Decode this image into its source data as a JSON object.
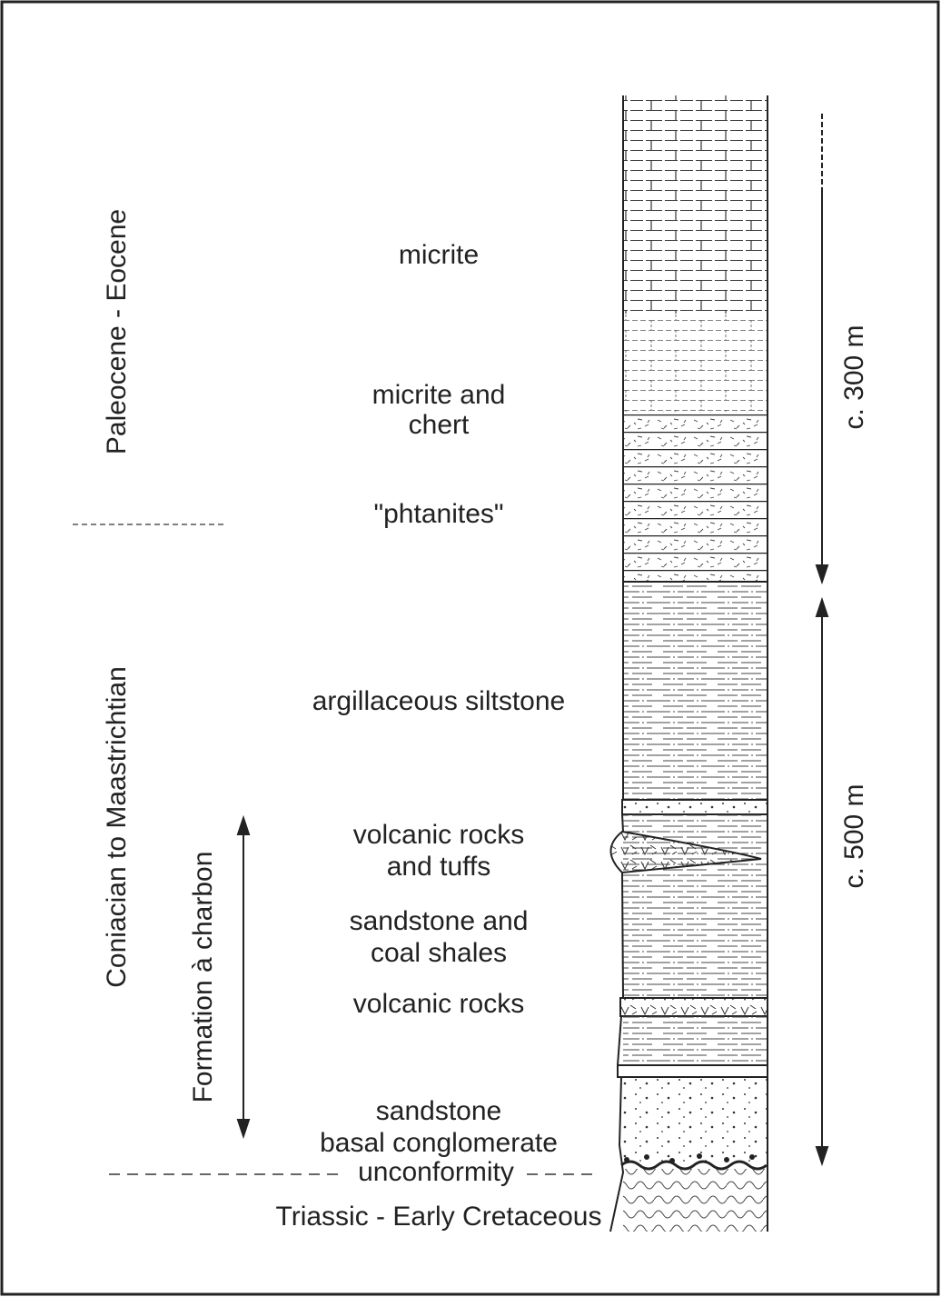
{
  "time_units": [
    "Paleocene - Eocene",
    "Coniacian to Maastrichtian"
  ],
  "formation": "Formation à charbon",
  "lithology": {
    "micrite": "micrite",
    "micrite_chert": [
      "micrite and",
      "chert"
    ],
    "phtanites": "\"phtanites\"",
    "siltstone": "argillaceous siltstone",
    "volcanic_tuffs": [
      "volcanic rocks",
      "and tuffs"
    ],
    "sandstone_coal": [
      "sandstone and",
      "coal shales"
    ],
    "volcanic": "volcanic rocks",
    "basal": [
      "sandstone",
      "basal conglomerate"
    ],
    "unconformity": "unconformity",
    "basement": "Triassic - Early Cretaceous"
  },
  "thickness": [
    "c. 300 m",
    "c. 500 m"
  ]
}
